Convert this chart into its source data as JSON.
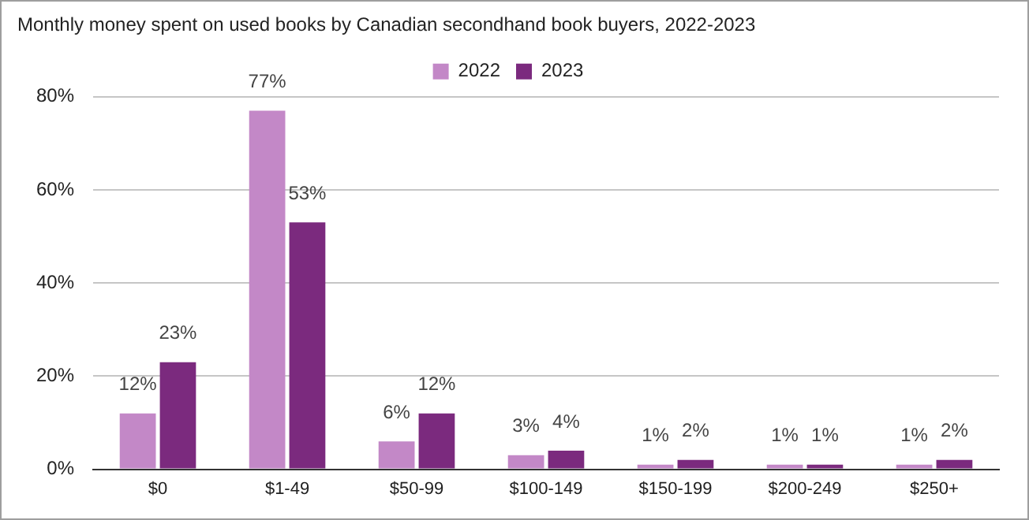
{
  "chart_data": {
    "type": "bar",
    "title": "Monthly money spent on used books by Canadian secondhand book buyers, 2022-2023",
    "categories": [
      "$0",
      "$1-49",
      "$50-99",
      "$100-149",
      "$150-199",
      "$200-249",
      "$250+"
    ],
    "series": [
      {
        "name": "2022",
        "color": "#c388c7",
        "values": [
          12,
          77,
          6,
          3,
          1,
          1,
          1
        ],
        "value_labels": [
          "12%",
          "77%",
          "6%",
          "3%",
          "1%",
          "1%",
          "1%"
        ]
      },
      {
        "name": "2023",
        "color": "#7b2a7e",
        "values": [
          23,
          53,
          12,
          4,
          2,
          1,
          2
        ],
        "value_labels": [
          "23%",
          "53%",
          "12%",
          "4%",
          "2%",
          "1%",
          "2%"
        ]
      }
    ],
    "ylim": [
      0,
      80
    ],
    "yticks": [
      {
        "value": 0,
        "label": "0%"
      },
      {
        "value": 20,
        "label": "20%"
      },
      {
        "value": 40,
        "label": "40%"
      },
      {
        "value": 60,
        "label": "60%"
      },
      {
        "value": 80,
        "label": "80%"
      }
    ],
    "grid": "y",
    "legend": "top"
  }
}
